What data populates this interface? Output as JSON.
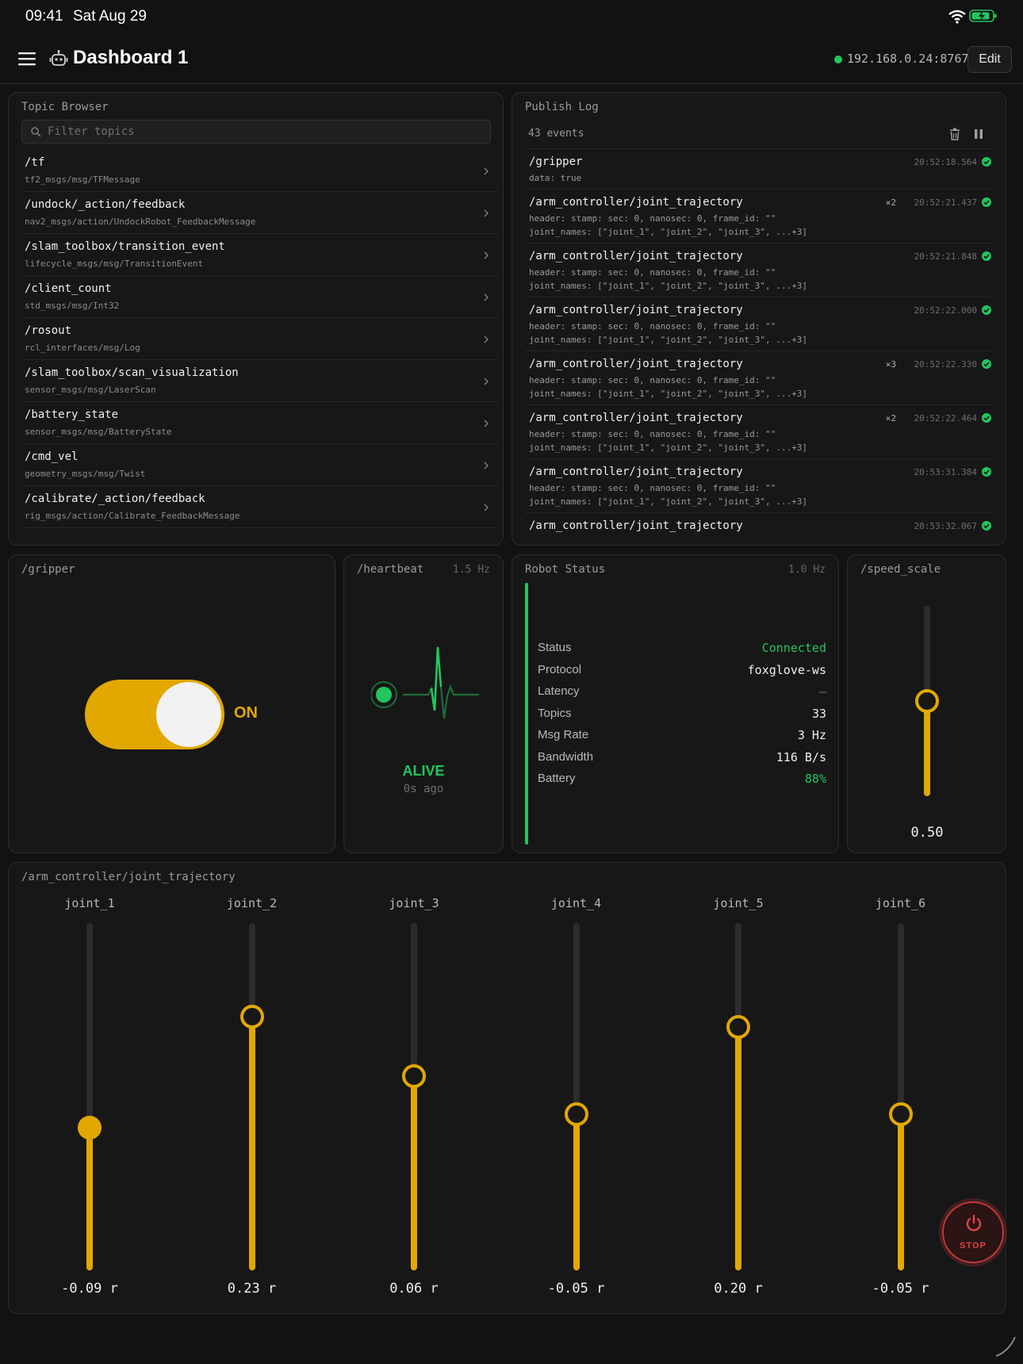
{
  "status_bar": {
    "time": "09:41",
    "date": "Sat Aug 29"
  },
  "header": {
    "title": "Dashboard 1",
    "connection": "192.168.0.24:8767",
    "edit_label": "Edit"
  },
  "colors": {
    "accent": "#e2a800",
    "ok": "#22c55e",
    "danger": "#e04444"
  },
  "topic_browser": {
    "title": "Topic Browser",
    "filter_placeholder": "Filter topics",
    "topics": [
      {
        "name": "/tf",
        "type": "tf2_msgs/msg/TFMessage"
      },
      {
        "name": "/undock/_action/feedback",
        "type": "nav2_msgs/action/UndockRobot_FeedbackMessage"
      },
      {
        "name": "/slam_toolbox/transition_event",
        "type": "lifecycle_msgs/msg/TransitionEvent"
      },
      {
        "name": "/client_count",
        "type": "std_msgs/msg/Int32"
      },
      {
        "name": "/rosout",
        "type": "rcl_interfaces/msg/Log"
      },
      {
        "name": "/slam_toolbox/scan_visualization",
        "type": "sensor_msgs/msg/LaserScan"
      },
      {
        "name": "/battery_state",
        "type": "sensor_msgs/msg/BatteryState"
      },
      {
        "name": "/cmd_vel",
        "type": "geometry_msgs/msg/Twist"
      },
      {
        "name": "/calibrate/_action/feedback",
        "type": "rig_msgs/action/Calibrate_FeedbackMessage"
      }
    ]
  },
  "publish_log": {
    "title": "Publish Log",
    "count": "43 events",
    "entries": [
      {
        "topic": "/gripper",
        "time": "20:52:18.564",
        "mult": "",
        "line1": "data: true",
        "line2": ""
      },
      {
        "topic": "/arm_controller/joint_trajectory",
        "time": "20:52:21.437",
        "mult": "×2",
        "line1": "header: stamp: sec: 0, nanosec: 0, frame_id: \"\"",
        "line2": "joint_names: [\"joint_1\", \"joint_2\", \"joint_3\", ...+3]"
      },
      {
        "topic": "/arm_controller/joint_trajectory",
        "time": "20:52:21.848",
        "mult": "",
        "line1": "header: stamp: sec: 0, nanosec: 0, frame_id: \"\"",
        "line2": "joint_names: [\"joint_1\", \"joint_2\", \"joint_3\", ...+3]"
      },
      {
        "topic": "/arm_controller/joint_trajectory",
        "time": "20:52:22.000",
        "mult": "",
        "line1": "header: stamp: sec: 0, nanosec: 0, frame_id: \"\"",
        "line2": "joint_names: [\"joint_1\", \"joint_2\", \"joint_3\", ...+3]"
      },
      {
        "topic": "/arm_controller/joint_trajectory",
        "time": "20:52:22.330",
        "mult": "×3",
        "line1": "header: stamp: sec: 0, nanosec: 0, frame_id: \"\"",
        "line2": "joint_names: [\"joint_1\", \"joint_2\", \"joint_3\", ...+3]"
      },
      {
        "topic": "/arm_controller/joint_trajectory",
        "time": "20:52:22.464",
        "mult": "×2",
        "line1": "header: stamp: sec: 0, nanosec: 0, frame_id: \"\"",
        "line2": "joint_names: [\"joint_1\", \"joint_2\", \"joint_3\", ...+3]"
      },
      {
        "topic": "/arm_controller/joint_trajectory",
        "time": "20:53:31.384",
        "mult": "",
        "line1": "header: stamp: sec: 0, nanosec: 0, frame_id: \"\"",
        "line2": "joint_names: [\"joint_1\", \"joint_2\", \"joint_3\", ...+3]"
      },
      {
        "topic": "/arm_controller/joint_trajectory",
        "time": "20:53:32.067",
        "mult": "",
        "line1": "",
        "line2": ""
      }
    ]
  },
  "gripper": {
    "title": "/gripper",
    "state": "ON",
    "on": true
  },
  "heartbeat": {
    "title": "/heartbeat",
    "rate": "1.5 Hz",
    "status": "ALIVE",
    "ago": "0s ago"
  },
  "robot_status": {
    "title": "Robot Status",
    "rate": "1.0 Hz",
    "rows": [
      {
        "label": "Status",
        "value": "Connected"
      },
      {
        "label": "Protocol",
        "value": "foxglove-ws"
      },
      {
        "label": "Latency",
        "value": "—"
      },
      {
        "label": "Topics",
        "value": "33"
      },
      {
        "label": "Msg Rate",
        "value": "3 Hz"
      },
      {
        "label": "Bandwidth",
        "value": "116 B/s"
      },
      {
        "label": "Battery",
        "value": "88%"
      }
    ]
  },
  "speed_scale": {
    "title": "/speed_scale",
    "value": "0.50",
    "level": 0.5
  },
  "joint_trajectory": {
    "title": "/arm_controller/joint_trajectory",
    "joints": [
      {
        "name": "joint_1",
        "display": "-0.09 r",
        "level": 0.41
      },
      {
        "name": "joint_2",
        "display": "0.23 r",
        "level": 0.73
      },
      {
        "name": "joint_3",
        "display": "0.06 r",
        "level": 0.56
      },
      {
        "name": "joint_4",
        "display": "-0.05 r",
        "level": 0.45
      },
      {
        "name": "joint_5",
        "display": "0.20 r",
        "level": 0.7
      },
      {
        "name": "joint_6",
        "display": "-0.05 r",
        "level": 0.45
      }
    ]
  },
  "stop_label": "STOP"
}
